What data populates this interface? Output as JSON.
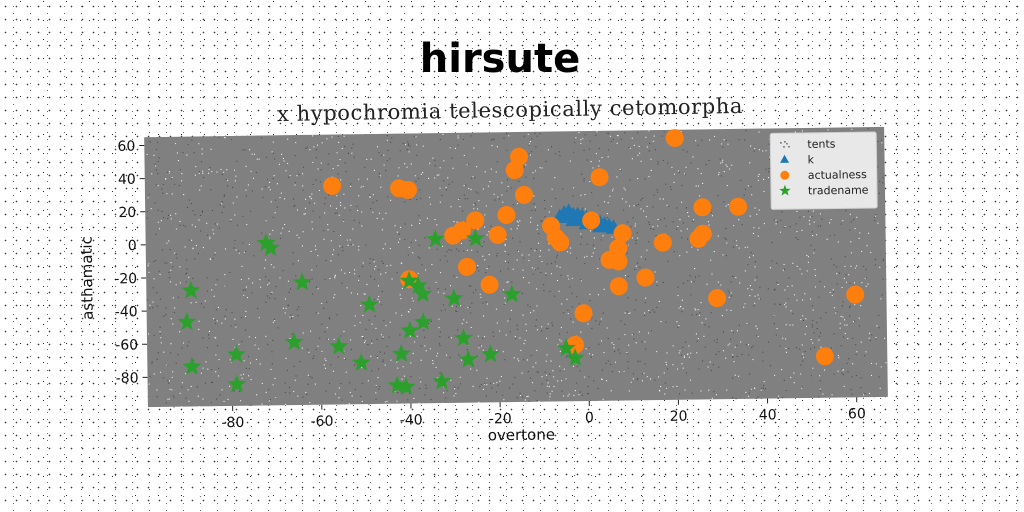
{
  "chart_data": {
    "type": "scatter",
    "title": "hirsute",
    "subtitle": "x hypochromia telescopically cetomorpha",
    "xlabel": "overtone",
    "ylabel": "asthamatic",
    "xlim": [
      -99,
      67
    ],
    "ylim": [
      -98,
      65
    ],
    "xticks": [
      -80,
      -60,
      -40,
      -20,
      0,
      20,
      40,
      60
    ],
    "yticks": [
      60,
      40,
      20,
      0,
      -20,
      -40,
      -60,
      -80
    ],
    "plot_background": "#808080",
    "legend_position": "top-right",
    "series": [
      {
        "name": "tents",
        "marker": "dot",
        "color": "#1a1a1a",
        "points": []
      },
      {
        "name": "k",
        "marker": "triangle",
        "color": "#1f77b4",
        "points": [
          [
            -5,
            15
          ],
          [
            -4,
            16
          ],
          [
            -3,
            14
          ],
          [
            -2,
            14
          ],
          [
            -1,
            13
          ],
          [
            0,
            12
          ],
          [
            1,
            11
          ],
          [
            2,
            10
          ],
          [
            3,
            9
          ],
          [
            4,
            8
          ],
          [
            5,
            7
          ],
          [
            -6,
            13
          ],
          [
            -3,
            11
          ],
          [
            0,
            9
          ],
          [
            3,
            7
          ],
          [
            6,
            6
          ]
        ]
      },
      {
        "name": "actualness",
        "marker": "circle",
        "color": "#ff7f0e",
        "points": [
          [
            20,
            60
          ],
          [
            -15,
            50
          ],
          [
            -16,
            42
          ],
          [
            3,
            37
          ],
          [
            -57,
            34
          ],
          [
            -42,
            32
          ],
          [
            -40,
            31
          ],
          [
            -14,
            27
          ],
          [
            34,
            18
          ],
          [
            26,
            18
          ],
          [
            -18,
            15
          ],
          [
            -25,
            12
          ],
          [
            1,
            11
          ],
          [
            -8,
            8
          ],
          [
            -28,
            6
          ],
          [
            -30,
            3
          ],
          [
            -20,
            3
          ],
          [
            -7,
            1
          ],
          [
            8,
            3
          ],
          [
            26,
            2
          ],
          [
            25,
            -1
          ],
          [
            -6,
            -2
          ],
          [
            17,
            -3
          ],
          [
            7,
            -6
          ],
          [
            5,
            -13
          ],
          [
            7,
            -14
          ],
          [
            -27,
            -16
          ],
          [
            -40,
            -23
          ],
          [
            13,
            -24
          ],
          [
            -22,
            -27
          ],
          [
            7,
            -29
          ],
          [
            29,
            -37
          ],
          [
            60,
            -36
          ],
          [
            -1,
            -45
          ],
          [
            -3,
            -64
          ],
          [
            53,
            -73
          ]
        ]
      },
      {
        "name": "tradename",
        "marker": "star",
        "color": "#2ca02c",
        "points": [
          [
            -72,
            0
          ],
          [
            -71,
            -3
          ],
          [
            -34,
            1
          ],
          [
            -25,
            1
          ],
          [
            -64,
            -24
          ],
          [
            -40,
            -24
          ],
          [
            -89,
            -28
          ],
          [
            -38,
            -27
          ],
          [
            -37,
            -32
          ],
          [
            -30,
            -35
          ],
          [
            -17,
            -33
          ],
          [
            -49,
            -38
          ],
          [
            -90,
            -47
          ],
          [
            -37,
            -49
          ],
          [
            -40,
            -54
          ],
          [
            -66,
            -60
          ],
          [
            -56,
            -63
          ],
          [
            -28,
            -59
          ],
          [
            -79,
            -67
          ],
          [
            -42,
            -68
          ],
          [
            -22,
            -69
          ],
          [
            -27,
            -72
          ],
          [
            -51,
            -73
          ],
          [
            -89,
            -74
          ],
          [
            -5,
            -66
          ],
          [
            -3,
            -72
          ],
          [
            -33,
            -85
          ],
          [
            -79,
            -85
          ],
          [
            -43,
            -87
          ],
          [
            -41,
            -88
          ]
        ]
      }
    ]
  }
}
